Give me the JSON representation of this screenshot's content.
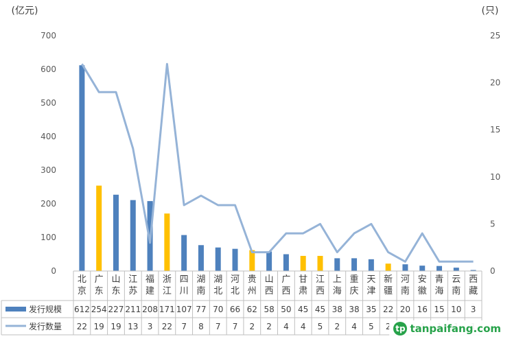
{
  "chart_data": {
    "type": "bar",
    "title": "",
    "y_left_unit": "(亿元)",
    "y_right_unit": "(只)",
    "ylim_left": [
      0,
      700
    ],
    "ylim_right": [
      0,
      25
    ],
    "y_left_ticks": [
      0,
      100,
      200,
      300,
      400,
      500,
      600,
      700
    ],
    "y_right_ticks": [
      0,
      5,
      10,
      15,
      20,
      25
    ],
    "categories": [
      "北京",
      "广东",
      "山东",
      "江苏",
      "福建",
      "浙江",
      "四川",
      "湖南",
      "湖北",
      "河北",
      "贵州",
      "山西",
      "广西",
      "甘肃",
      "江西",
      "上海",
      "重庆",
      "天津",
      "新疆",
      "河南",
      "安徽",
      "青海",
      "云南",
      "西藏"
    ],
    "series": [
      {
        "name": "发行规模",
        "kind": "bar",
        "axis": "left",
        "values": [
          612,
          254,
          227,
          211,
          208,
          171,
          107,
          77,
          70,
          66,
          62,
          58,
          50,
          45,
          45,
          38,
          38,
          35,
          22,
          20,
          16,
          15,
          10,
          3
        ],
        "highlight": [
          false,
          true,
          false,
          false,
          false,
          true,
          false,
          false,
          false,
          false,
          true,
          false,
          false,
          true,
          true,
          false,
          false,
          false,
          true,
          false,
          false,
          false,
          false,
          false
        ]
      },
      {
        "name": "发行数量",
        "kind": "line",
        "axis": "right",
        "values": [
          22,
          19,
          19,
          13,
          3,
          22,
          7,
          8,
          7,
          7,
          2,
          2,
          4,
          4,
          5,
          2,
          4,
          5,
          2,
          1,
          4,
          1,
          1,
          1
        ]
      }
    ],
    "colors": {
      "bar": "#4e81bd",
      "bar_highlight": "#ffc000",
      "line": "#95b3d7"
    },
    "legend_placement": "data-table-left",
    "grid": false
  },
  "watermark": {
    "logo_letter": "tp",
    "text": "tanpaifang.com"
  }
}
